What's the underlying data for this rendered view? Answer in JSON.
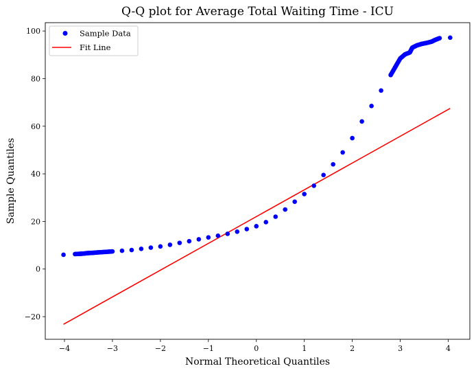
{
  "chart_data": {
    "type": "scatter",
    "title": "Q-Q plot for Average Total Waiting Time - ICU",
    "xlabel": "Normal Theoretical Quantiles",
    "ylabel": "Sample Quantiles",
    "xlim": [
      -4.4,
      4.45
    ],
    "ylim": [
      -29.5,
      103.5
    ],
    "xticks": [
      -4,
      -3,
      -2,
      -1,
      0,
      1,
      2,
      3,
      4
    ],
    "yticks": [
      -20,
      0,
      20,
      40,
      60,
      80,
      100
    ],
    "xtick_labels": [
      "−4",
      "−3",
      "−2",
      "−1",
      "0",
      "1",
      "2",
      "3",
      "4"
    ],
    "ytick_labels": [
      "−20",
      "0",
      "20",
      "40",
      "60",
      "80",
      "100"
    ],
    "grid": false,
    "legend": {
      "placement": "top-left",
      "entries": [
        "Sample Data",
        "Fit Line"
      ]
    },
    "colors": {
      "sample": "#0000ff",
      "fit": "#ff0000"
    },
    "series": [
      {
        "name": "Sample Data",
        "kind": "scatter",
        "x": [
          -4.02,
          -3.78,
          -3.68,
          -3.6,
          -3.52,
          -3.42,
          -3.3,
          -3.15,
          -3.0,
          -2.8,
          -2.6,
          -2.4,
          -2.2,
          -2.0,
          -1.8,
          -1.6,
          -1.4,
          -1.2,
          -1.0,
          -0.8,
          -0.6,
          -0.4,
          -0.2,
          0.0,
          0.2,
          0.4,
          0.6,
          0.8,
          1.0,
          1.2,
          1.4,
          1.6,
          1.8,
          2.0,
          2.2,
          2.4,
          2.6,
          2.8,
          2.9,
          3.0,
          3.1,
          3.2,
          3.25,
          3.35,
          3.45,
          3.55,
          3.65,
          3.72,
          3.82,
          4.04
        ],
        "y": [
          6.0,
          6.3,
          6.4,
          6.5,
          6.7,
          6.8,
          7.0,
          7.2,
          7.4,
          7.7,
          8.0,
          8.5,
          9.0,
          9.5,
          10.2,
          11.0,
          11.7,
          12.5,
          13.3,
          14.0,
          14.8,
          15.7,
          16.8,
          18.0,
          19.7,
          22.0,
          25.0,
          28.3,
          31.5,
          35.0,
          39.5,
          44.0,
          49.0,
          55.0,
          62.0,
          68.5,
          75.0,
          81.5,
          85.0,
          88.5,
          90.2,
          91.0,
          93.0,
          94.0,
          94.6,
          95.0,
          95.5,
          96.2,
          97.0,
          97.2
        ]
      },
      {
        "name": "Fit Line",
        "kind": "line",
        "x": [
          -4.02,
          4.04
        ],
        "y": [
          -23.2,
          67.5
        ]
      }
    ]
  }
}
